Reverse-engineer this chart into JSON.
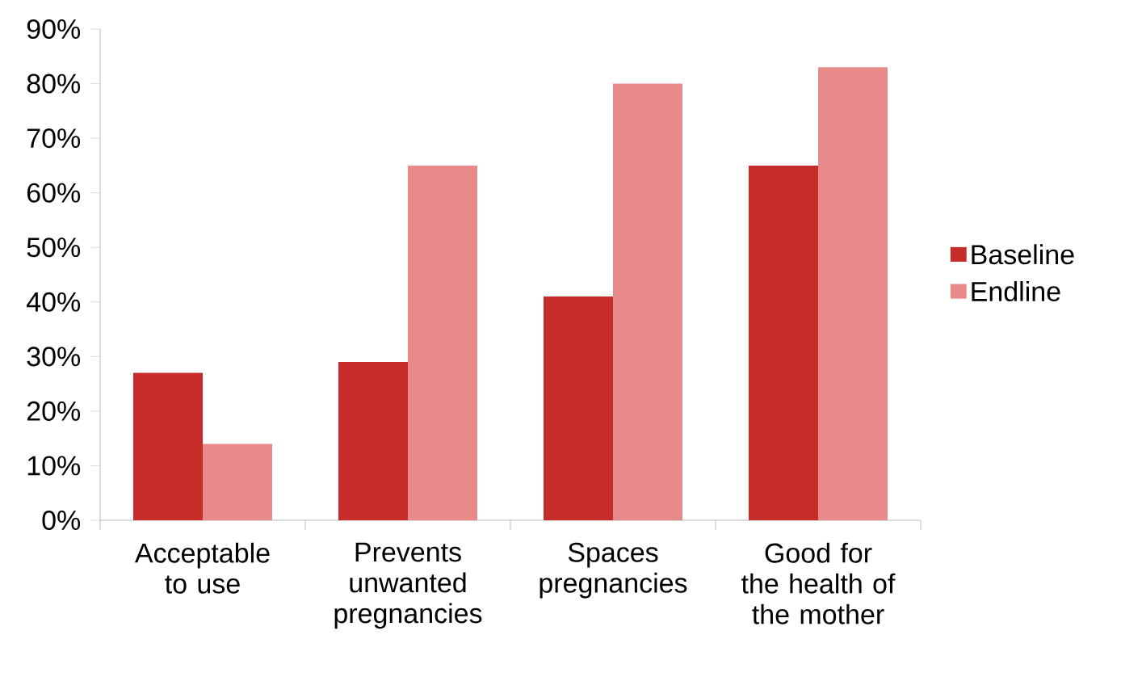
{
  "chart_data": {
    "type": "bar",
    "categories": [
      "Acceptable to use",
      "Prevents unwanted pregnancies",
      "Spaces pregnancies",
      "Good for the health of the mother"
    ],
    "series": [
      {
        "name": "Baseline",
        "color": "#c62d2a",
        "values": [
          27,
          29,
          41,
          65
        ]
      },
      {
        "name": "Endline",
        "color": "#e88a8a",
        "values": [
          14,
          65,
          80,
          83
        ]
      }
    ],
    "ylim": [
      0,
      90
    ],
    "yticks": [
      {
        "value": 0,
        "label": "0%"
      },
      {
        "value": 10,
        "label": "10%"
      },
      {
        "value": 20,
        "label": "20%"
      },
      {
        "value": 30,
        "label": "30%"
      },
      {
        "value": 40,
        "label": "40%"
      },
      {
        "value": 50,
        "label": "50%"
      },
      {
        "value": 60,
        "label": "60%"
      },
      {
        "value": 70,
        "label": "70%"
      },
      {
        "value": 80,
        "label": "80%"
      },
      {
        "value": 90,
        "label": "90%"
      }
    ],
    "grid": false,
    "legend": "right"
  }
}
